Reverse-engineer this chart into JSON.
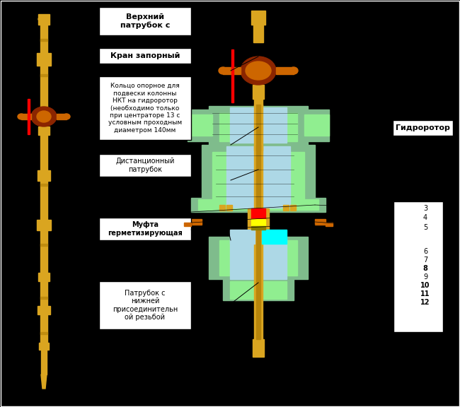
{
  "background_color": "#000000",
  "title": "",
  "labels": {
    "верхний_патрубок": "Верхний\nпатрубок с",
    "кран_запорный": "Кран запорный",
    "кольцо": "Кольцо опорное для\nподвески колонны\nНКТ на гидроротор\n(необходимо только\nпри центраторе 13 с\nусловным проходным\nдиаметром 140мм",
    "дистанционный": "Дистанционный\nпатрубок",
    "муфта": "Муфта\nгерметизирующая",
    "патрубок_нижний": "Патрубок с\nнижней\nприсоединительн\nой резьбой",
    "гидроротор": "Гидроротор"
  },
  "numbers": [
    "3",
    "4",
    "5",
    "",
    "6",
    "7",
    "8",
    "9",
    "10",
    "11",
    "12"
  ],
  "colors": {
    "gold": "#DAA520",
    "dark_gold": "#B8860B",
    "brown_red": "#8B2500",
    "orange_brown": "#CD6600",
    "light_teal": "#90EE90",
    "teal": "#7FBC8C",
    "dark_teal": "#5F9E6E",
    "light_blue": "#ADD8E6",
    "cyan": "#00FFFF",
    "red": "#FF0000",
    "gray": "#808080",
    "light_gray": "#C0C0C0",
    "white": "#FFFFFF",
    "black": "#000000",
    "yellow": "#FFFF00",
    "dark_brown": "#4A1500"
  }
}
